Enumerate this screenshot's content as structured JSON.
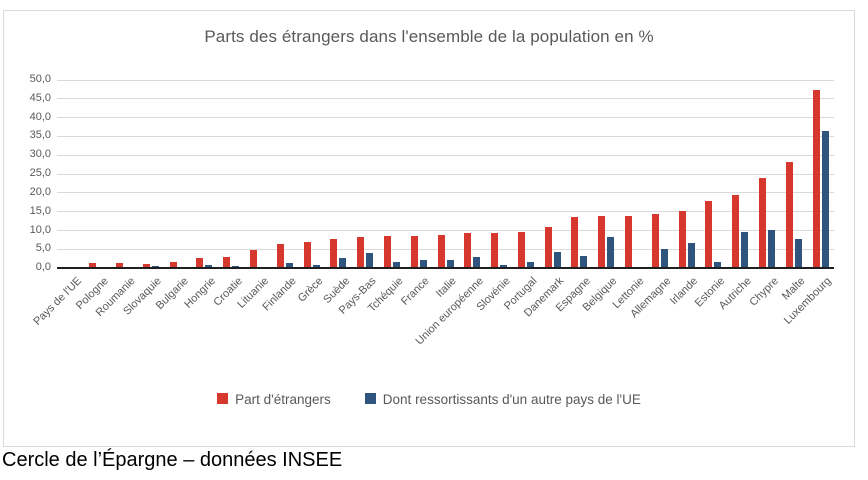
{
  "page": {
    "caption": "Cercle de l’Épargne – données INSEE"
  },
  "chart_data": {
    "type": "bar",
    "title": "Parts des étrangers dans l'ensemble de la population en %",
    "xlabel": "",
    "ylabel": "",
    "ylim": [
      0,
      50
    ],
    "ytick_step": 5,
    "ytick_labels": [
      "0,0",
      "5,0",
      "10,0",
      "15,0",
      "20,0",
      "25,0",
      "30,0",
      "35,0",
      "40,0",
      "45,0",
      "50,0"
    ],
    "grid": true,
    "legend_position": "bottom-center",
    "categories": [
      "Pays de l'UE",
      "Pologne",
      "Roumanie",
      "Slovaquie",
      "Bulgarie",
      "Hongrie",
      "Croatie",
      "Lituanie",
      "Finlande",
      "Grèce",
      "Suède",
      "Pays-Bas",
      "Tchéquie",
      "France",
      "Italie",
      "Union européenne",
      "Slovénie",
      "Portugal",
      "Danemark",
      "Espagne",
      "Belgique",
      "Lettonie",
      "Allemagne",
      "Irlande",
      "Estonie",
      "Autriche",
      "Chypre",
      "Malte",
      "Luxembourg"
    ],
    "series": [
      {
        "name": "Part d'étrangers",
        "color": "#d7382e",
        "values": [
          0,
          1.3,
          1.3,
          1.2,
          1.8,
          2.7,
          3.1,
          4.8,
          6.4,
          7.1,
          7.7,
          8.2,
          8.7,
          8.7,
          8.8,
          9.4,
          9.5,
          9.7,
          11.0,
          13.5,
          13.8,
          13.9,
          14.4,
          15.3,
          17.8,
          19.5,
          23.9,
          28.1,
          47.3
        ]
      },
      {
        "name": "Dont ressortissants d'un autre pays de l'UE",
        "color": "#2f547e",
        "values": [
          0,
          0.2,
          0.2,
          0.7,
          0.3,
          0.9,
          0.5,
          0.2,
          1.4,
          0.8,
          2.8,
          4.0,
          1.6,
          2.2,
          2.1,
          3.1,
          0.9,
          1.6,
          4.4,
          3.3,
          8.4,
          0.3,
          5.1,
          6.6,
          1.6,
          9.7,
          10.2,
          7.8,
          36.4
        ]
      }
    ]
  }
}
